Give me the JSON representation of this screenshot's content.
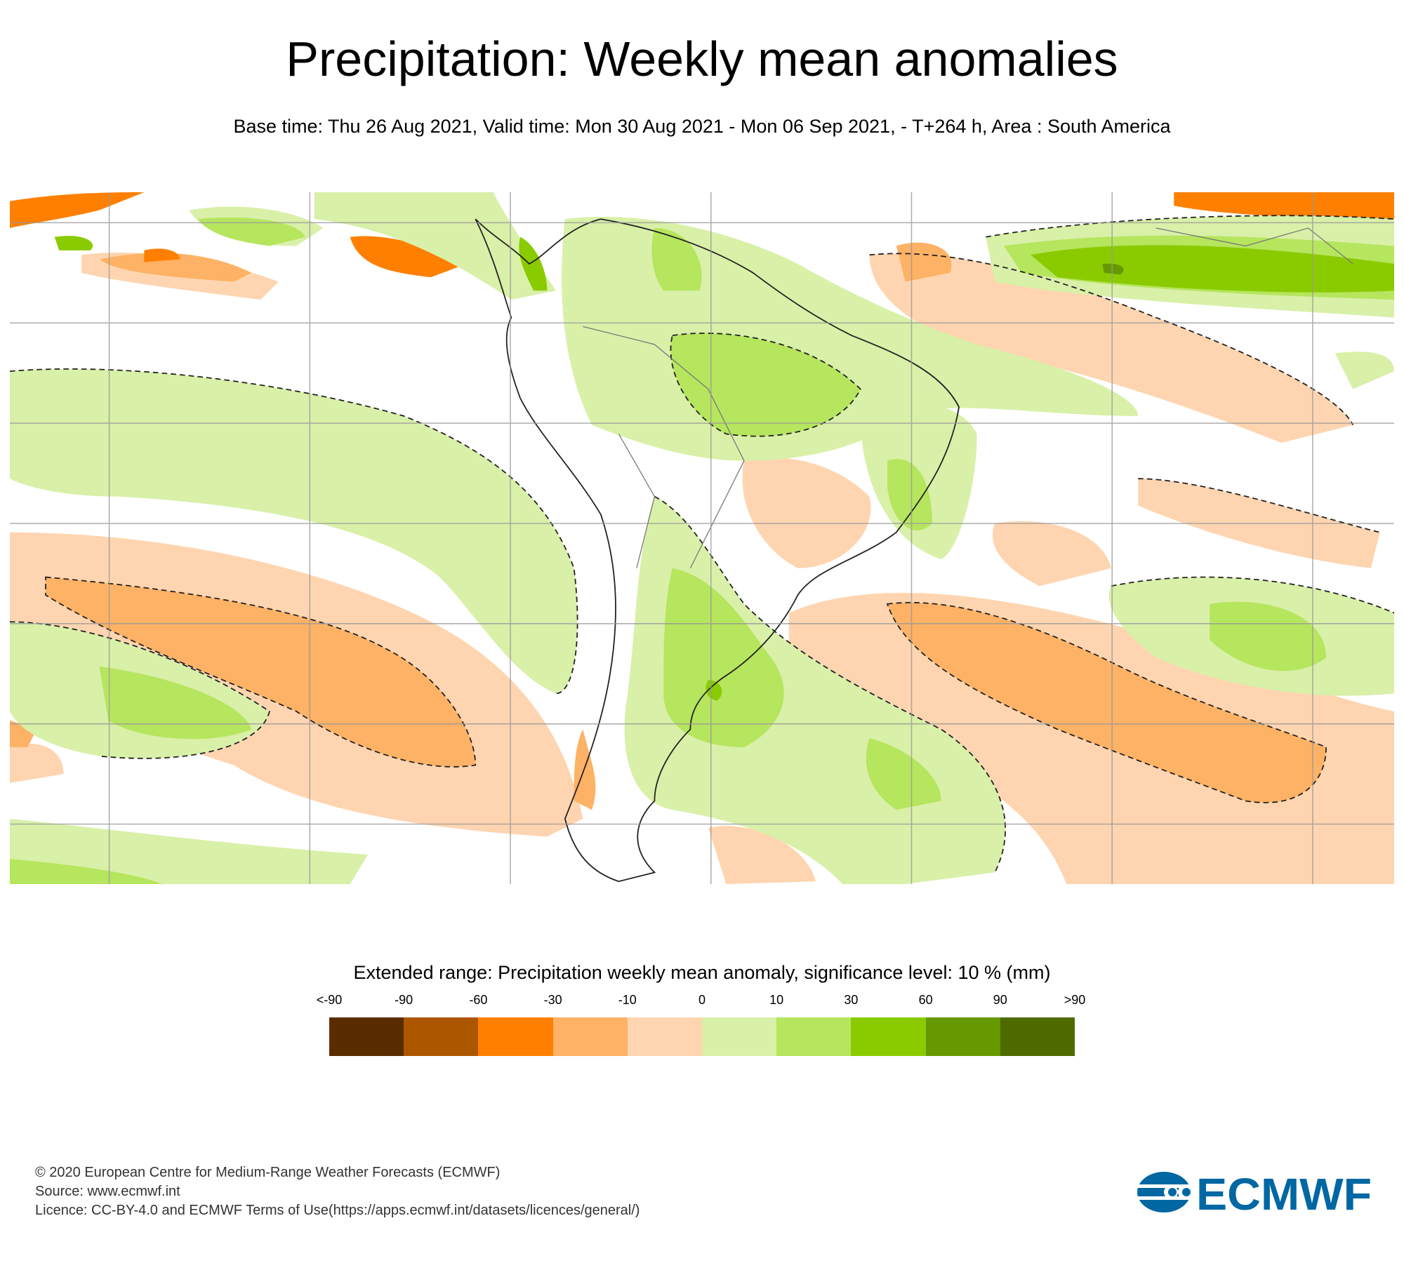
{
  "title": "Precipitation: Weekly mean anomalies",
  "subtitle": "Base time: Thu 26 Aug 2021, Valid time: Mon 30 Aug 2021 - Mon 06 Sep 2021, - T+264 h, Area : South America",
  "legend": {
    "title": "Extended range: Precipitation weekly mean anomaly, significance level: 10 % (mm)",
    "ticks": [
      "<-90",
      "-90",
      "-60",
      "-30",
      "-10",
      "0",
      "10",
      "30",
      "60",
      "90",
      ">90"
    ],
    "colors": [
      "#5a2d00",
      "#ad5600",
      "#ff7f00",
      "#fdb266",
      "#fed5b0",
      "#d9f0a8",
      "#b6e55e",
      "#8acb00",
      "#669900",
      "#4f6b00"
    ]
  },
  "footer": {
    "copyright": "© 2020 European Centre for Medium-Range Weather Forecasts (ECMWF)",
    "source": "Source: www.ecmwf.int",
    "licence": "Licence: CC-BY-4.0 and ECMWF Terms of Use(https://apps.ecmwf.int/datasets/licences/general/)"
  },
  "logo": {
    "text": "ECMWF",
    "color": "#0067a3"
  }
}
